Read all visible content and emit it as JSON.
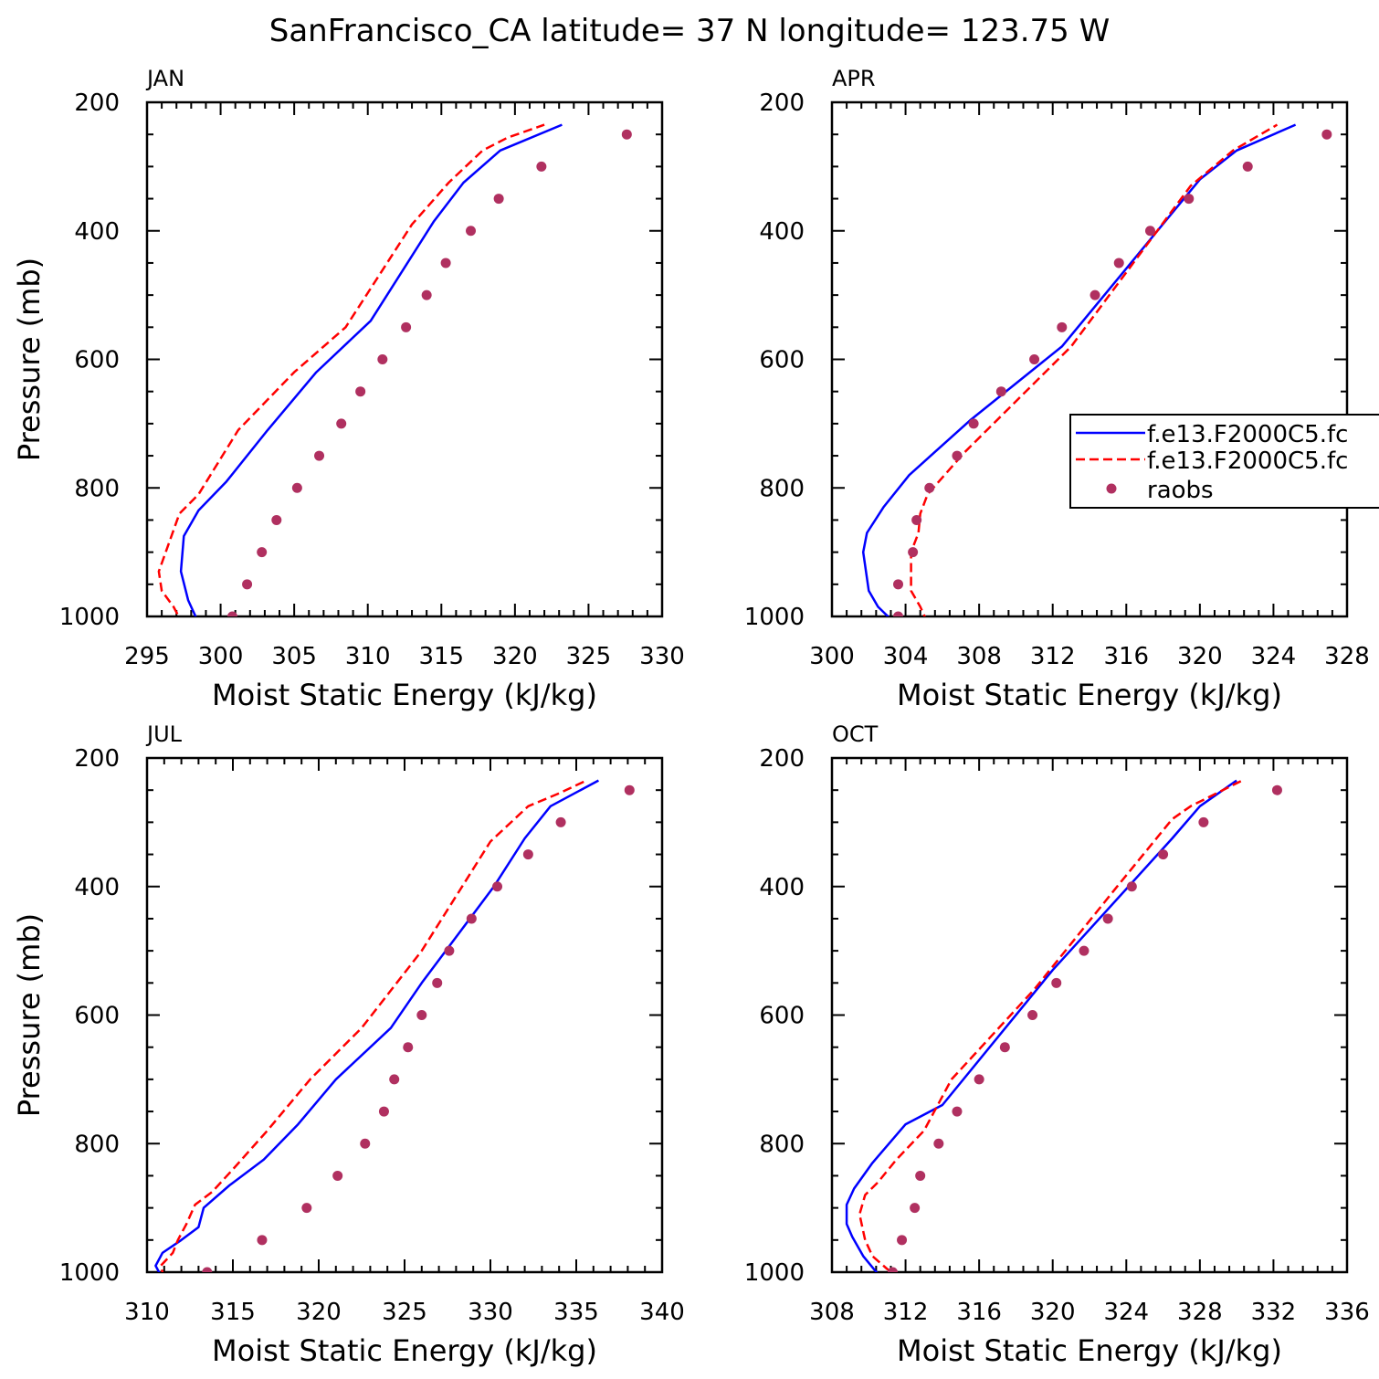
{
  "figure": {
    "title": "SanFrancisco_CA  latitude= 37 N longitude= 123.75 W"
  },
  "colors": {
    "model1": "#0000ff",
    "model2": "#ff0000",
    "obs": "#b03060",
    "axis": "#000000"
  },
  "legend": {
    "entries": [
      {
        "label": "f.e13.F2000C5.fc",
        "style": "solid",
        "color": "#0000ff"
      },
      {
        "label": "f.e13.F2000C5.fc",
        "style": "dashed",
        "color": "#ff0000"
      },
      {
        "label": "raobs",
        "style": "marker",
        "color": "#b03060"
      }
    ]
  },
  "chart_data": [
    {
      "type": "line",
      "panel": "JAN",
      "title": "JAN",
      "xlabel": "Moist Static Energy (kJ/kg)",
      "ylabel": "Pressure (mb)",
      "xlim": [
        295,
        330
      ],
      "xticks": [
        295,
        300,
        305,
        310,
        315,
        320,
        325,
        330
      ],
      "ylim": [
        1000,
        200
      ],
      "yticks": [
        200,
        400,
        600,
        800,
        1000
      ],
      "series": [
        {
          "name": "f.e13.F2000C5.fc",
          "kind": "solid",
          "x": [
            298.5,
            297.8,
            297.3,
            297.5,
            298.5,
            300.4,
            303.2,
            306.5,
            310.2,
            314.5,
            316.5,
            319.0,
            323.2
          ],
          "y": [
            1010,
            975,
            930,
            875,
            835,
            790,
            710,
            620,
            540,
            385,
            325,
            275,
            235
          ]
        },
        {
          "name": "f.e13.F2000C5.fc",
          "kind": "dashed",
          "x": [
            297.5,
            296.8,
            296.0,
            295.8,
            296.5,
            297.2,
            298.5,
            301.2,
            305.0,
            308.5,
            313.0,
            315.5,
            317.8,
            319.5,
            322.0
          ],
          "y": [
            1015,
            985,
            960,
            930,
            885,
            840,
            810,
            710,
            620,
            550,
            390,
            325,
            275,
            255,
            235
          ]
        },
        {
          "name": "raobs",
          "kind": "marker",
          "x": [
            300.8,
            301.8,
            302.8,
            303.8,
            305.2,
            306.7,
            308.2,
            309.5,
            311.0,
            312.6,
            314.0,
            315.3,
            317.0,
            318.9,
            321.8,
            327.6
          ],
          "y": [
            1000,
            950,
            900,
            850,
            800,
            750,
            700,
            650,
            600,
            550,
            500,
            450,
            400,
            350,
            300,
            250
          ]
        }
      ]
    },
    {
      "type": "line",
      "panel": "APR",
      "title": "APR",
      "xlabel": "Moist Static Energy (kJ/kg)",
      "ylabel": "",
      "xlim": [
        300,
        328
      ],
      "xticks": [
        300,
        304,
        308,
        312,
        316,
        320,
        324,
        328
      ],
      "ylim": [
        1000,
        200
      ],
      "yticks": [
        200,
        400,
        600,
        800,
        1000
      ],
      "series": [
        {
          "name": "f.e13.F2000C5.fc",
          "kind": "solid",
          "x": [
            303.4,
            302.5,
            302.0,
            301.7,
            301.9,
            302.8,
            304.2,
            307.5,
            312.5,
            320.0,
            322.0,
            325.2
          ],
          "y": [
            1010,
            985,
            960,
            900,
            870,
            830,
            780,
            695,
            580,
            320,
            275,
            235
          ]
        },
        {
          "name": "f.e13.F2000C5.fc",
          "kind": "dashed",
          "x": [
            305.2,
            304.8,
            304.3,
            304.3,
            304.7,
            304.8,
            305.2,
            307.2,
            313.0,
            319.5,
            321.8,
            324.2
          ],
          "y": [
            1010,
            985,
            960,
            900,
            870,
            840,
            810,
            745,
            580,
            330,
            275,
            235
          ]
        },
        {
          "name": "raobs",
          "kind": "marker",
          "x": [
            303.6,
            303.6,
            304.4,
            304.6,
            305.3,
            306.8,
            307.7,
            309.2,
            311.0,
            312.5,
            314.3,
            315.6,
            317.3,
            319.4,
            322.6,
            326.9
          ],
          "y": [
            1000,
            950,
            900,
            850,
            800,
            750,
            700,
            650,
            600,
            550,
            500,
            450,
            400,
            350,
            300,
            250
          ]
        }
      ]
    },
    {
      "type": "line",
      "panel": "JUL",
      "title": "JUL",
      "xlabel": "Moist Static Energy (kJ/kg)",
      "ylabel": "Pressure (mb)",
      "xlim": [
        310,
        340
      ],
      "xticks": [
        310,
        315,
        320,
        325,
        330,
        335,
        340
      ],
      "ylim": [
        1000,
        200
      ],
      "yticks": [
        200,
        400,
        600,
        800,
        1000
      ],
      "series": [
        {
          "name": "f.e13.F2000C5.fc",
          "kind": "solid",
          "x": [
            310.9,
            310.5,
            310.9,
            312.0,
            313.0,
            313.3,
            314.8,
            316.8,
            318.8,
            321.0,
            324.2,
            326.0,
            330.2,
            332.0,
            333.5,
            336.3
          ],
          "y": [
            1010,
            990,
            970,
            950,
            930,
            900,
            865,
            825,
            770,
            700,
            620,
            550,
            400,
            325,
            275,
            235
          ]
        },
        {
          "name": "f.e13.F2000C5.fc",
          "kind": "dashed",
          "x": [
            311.0,
            310.8,
            311.5,
            311.8,
            312.3,
            312.8,
            313.8,
            315.0,
            317.0,
            319.5,
            322.5,
            326.0,
            330.0,
            332.2,
            334.0,
            335.6
          ],
          "y": [
            1010,
            990,
            970,
            950,
            925,
            895,
            875,
            840,
            780,
            700,
            620,
            500,
            330,
            275,
            255,
            235
          ]
        },
        {
          "name": "raobs",
          "kind": "marker",
          "x": [
            313.5,
            316.7,
            319.3,
            321.1,
            322.7,
            323.8,
            324.4,
            325.2,
            326.0,
            326.9,
            327.6,
            328.9,
            330.4,
            332.2,
            334.1,
            338.1
          ],
          "y": [
            1000,
            950,
            900,
            850,
            800,
            750,
            700,
            650,
            600,
            550,
            500,
            450,
            400,
            350,
            300,
            250
          ]
        }
      ]
    },
    {
      "type": "line",
      "panel": "OCT",
      "title": "OCT",
      "xlabel": "Moist Static Energy (kJ/kg)",
      "ylabel": "",
      "xlim": [
        308,
        336
      ],
      "xticks": [
        308,
        312,
        316,
        320,
        324,
        328,
        332,
        336
      ],
      "ylim": [
        1000,
        200
      ],
      "yticks": [
        200,
        400,
        600,
        800,
        1000
      ],
      "series": [
        {
          "name": "f.e13.F2000C5.fc",
          "kind": "solid",
          "x": [
            310.7,
            309.7,
            309.1,
            308.8,
            308.8,
            309.2,
            310.2,
            312.0,
            314.0,
            320.0,
            326.5,
            328.0,
            330.0
          ],
          "y": [
            1010,
            975,
            945,
            925,
            895,
            870,
            830,
            770,
            740,
            530,
            325,
            275,
            235
          ]
        },
        {
          "name": "f.e13.F2000C5.fc",
          "kind": "dashed",
          "x": [
            311.8,
            311.0,
            310.2,
            309.8,
            309.5,
            309.8,
            310.5,
            311.5,
            313.0,
            314.5,
            319.0,
            323.5,
            326.5,
            327.5,
            330.3
          ],
          "y": [
            1010,
            995,
            975,
            950,
            910,
            880,
            860,
            825,
            780,
            700,
            560,
            400,
            295,
            275,
            235
          ]
        },
        {
          "name": "raobs",
          "kind": "marker",
          "x": [
            311.3,
            311.8,
            312.5,
            312.8,
            313.8,
            314.8,
            316.0,
            317.4,
            318.9,
            320.2,
            321.7,
            323.0,
            324.3,
            326.0,
            328.2,
            332.2
          ],
          "y": [
            1000,
            950,
            900,
            850,
            800,
            750,
            700,
            650,
            600,
            550,
            500,
            450,
            400,
            350,
            300,
            250
          ]
        }
      ]
    }
  ]
}
